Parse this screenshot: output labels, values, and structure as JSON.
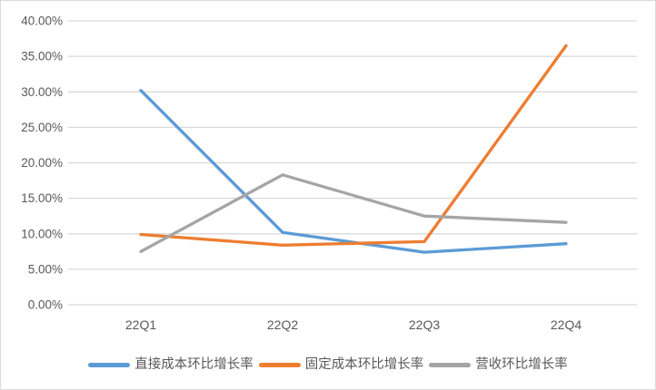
{
  "chart_data": {
    "type": "line",
    "categories": [
      "22Q1",
      "22Q2",
      "22Q3",
      "22Q4"
    ],
    "series": [
      {
        "name": "直接成本环比增长率",
        "color": "#5B9BD5",
        "values": [
          30.2,
          10.2,
          7.4,
          8.6
        ]
      },
      {
        "name": "固定成本环比增长率",
        "color": "#ED7D31",
        "values": [
          9.9,
          8.4,
          8.9,
          36.5
        ]
      },
      {
        "name": "营收环比增长率",
        "color": "#A5A5A5",
        "values": [
          7.5,
          18.3,
          12.5,
          11.6
        ]
      }
    ],
    "xlabel": "",
    "ylabel": "",
    "ylim": [
      0,
      40
    ],
    "y_tick_step": 5,
    "y_tick_labels": [
      "0.00%",
      "5.00%",
      "10.00%",
      "15.00%",
      "20.00%",
      "25.00%",
      "30.00%",
      "35.00%",
      "40.00%"
    ],
    "grid": true,
    "legend_position": "bottom",
    "styles": {
      "grid_color": "#D9D9D9",
      "border_color": "#D9D9D9",
      "tick_label_color": "#595959",
      "background": "#FFFFFF"
    }
  }
}
